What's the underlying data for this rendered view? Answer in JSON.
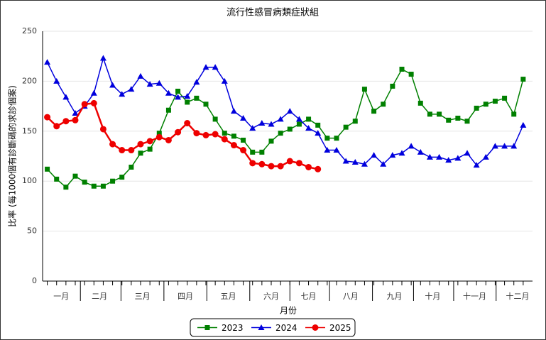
{
  "chart_data": {
    "type": "line",
    "title": "流行性感冒病類症狀組",
    "x_label": "月份",
    "y_label": "比率 (每1000個有診斷碼的求診個案)",
    "x": [
      1,
      2,
      3,
      4,
      5,
      6,
      7,
      8,
      9,
      10,
      11,
      12,
      13,
      14,
      15,
      16,
      17,
      18,
      19,
      20,
      21,
      22,
      23,
      24,
      25,
      26,
      27,
      28,
      29,
      30,
      31,
      32,
      33,
      34,
      35,
      36,
      37,
      38,
      39,
      40,
      41,
      42,
      43,
      44,
      45,
      46,
      47,
      48,
      49,
      50,
      51,
      52
    ],
    "xlim": [
      0.5,
      53
    ],
    "xticks": [
      {
        "value": 2.5,
        "label": "一月"
      },
      {
        "value": 6.6,
        "label": "二月"
      },
      {
        "value": 11.2,
        "label": "三月"
      },
      {
        "value": 15.8,
        "label": "四月"
      },
      {
        "value": 20.4,
        "label": "五月"
      },
      {
        "value": 25,
        "label": "六月"
      },
      {
        "value": 29,
        "label": "七月"
      },
      {
        "value": 33.5,
        "label": "八月"
      },
      {
        "value": 38.2,
        "label": "九月"
      },
      {
        "value": 42.3,
        "label": "十月"
      },
      {
        "value": 46.8,
        "label": "十一月"
      },
      {
        "value": 51.4,
        "label": "十二月"
      }
    ],
    "ylim": [
      0,
      250
    ],
    "yticks": [
      0,
      50,
      100,
      150,
      200,
      250
    ],
    "grid": true,
    "legend": "bottom",
    "series": [
      {
        "name": "2023",
        "color": "#008000",
        "marker": "square",
        "values": [
          112,
          102,
          94,
          105,
          99,
          95,
          95,
          100,
          104,
          114,
          128,
          132,
          148,
          171,
          190,
          179,
          183,
          177,
          162,
          148,
          145,
          141,
          129,
          129,
          140,
          148,
          152,
          157,
          162,
          156,
          143,
          143,
          154,
          160,
          192,
          170,
          177,
          195,
          212,
          207,
          178,
          167,
          167,
          161,
          163,
          160,
          173,
          177,
          180,
          183,
          167,
          202
        ]
      },
      {
        "name": "2024",
        "color": "#0000dd",
        "marker": "triangle",
        "values": [
          219,
          200,
          184,
          168,
          175,
          188,
          223,
          196,
          187,
          192,
          205,
          197,
          198,
          188,
          184,
          185,
          199,
          214,
          214,
          200,
          170,
          163,
          153,
          158,
          157,
          162,
          170,
          162,
          153,
          148,
          131,
          131,
          120,
          119,
          117,
          126,
          117,
          126,
          128,
          135,
          129,
          124,
          124,
          121,
          123,
          128,
          116,
          124,
          135,
          135,
          135,
          156
        ]
      },
      {
        "name": "2025",
        "color": "#ee0000",
        "marker": "circle",
        "values": [
          164,
          155,
          160,
          161,
          177,
          178,
          152,
          137,
          131,
          131,
          137,
          140,
          144,
          141,
          149,
          158,
          148,
          146,
          147,
          142,
          136,
          131,
          118,
          117,
          115,
          115,
          120,
          118,
          114,
          112,
          null,
          null,
          null,
          null,
          null,
          null,
          null,
          null,
          null,
          null,
          null,
          null,
          null,
          null,
          null,
          null,
          null,
          null,
          null,
          null,
          null,
          null
        ]
      }
    ]
  }
}
